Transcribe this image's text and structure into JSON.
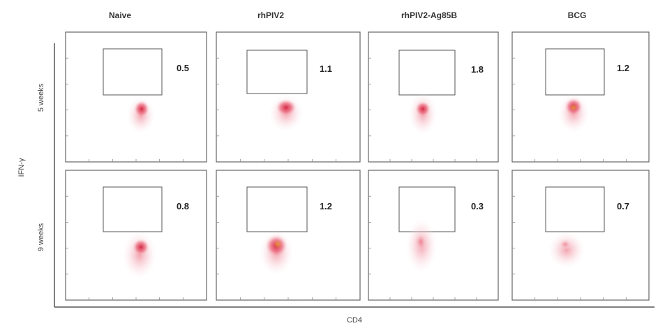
{
  "figure": {
    "columns": [
      "Naive",
      "rhPIV2",
      "rhPIV2-Ag85B",
      "BCG"
    ],
    "rows": [
      "5 weeks",
      "9 weeks"
    ],
    "y_axis_label": "IFN-γ",
    "x_axis_label": "CD4",
    "gate_percentages": [
      [
        "0.5",
        "1.1",
        "1.8",
        "1.2"
      ],
      [
        "0.8",
        "1.2",
        "0.3",
        "0.7"
      ]
    ],
    "colors": {
      "density_low": "#f6c6cf",
      "density_mid": "#e9566b",
      "density_high": "#d21f3c",
      "density_peak": "#e8a13a",
      "gate_stroke": "#555555",
      "frame_stroke": "#666666"
    }
  }
}
